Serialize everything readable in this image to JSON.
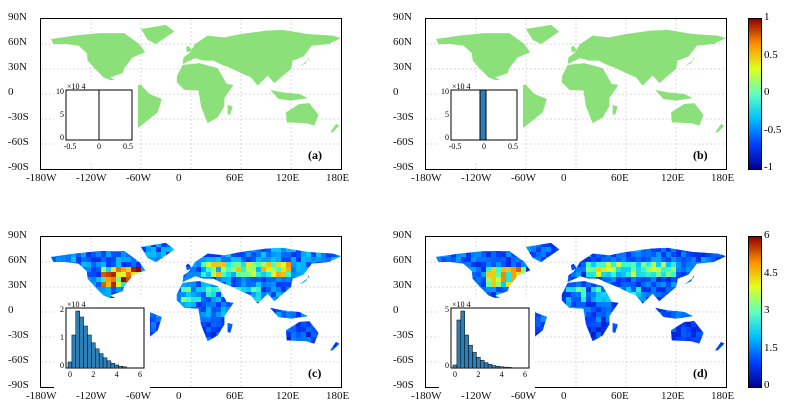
{
  "axes": {
    "lon_ticks": [
      "-180W",
      "-120W",
      "-60W",
      "0",
      "60E",
      "120E",
      "180E"
    ],
    "lat_ticks": [
      "90N",
      "60N",
      "30N",
      "0",
      "-30S",
      "-60S",
      "-90S"
    ]
  },
  "panels": [
    {
      "id": "a",
      "label": "(a)",
      "type": "zero",
      "inset_exp": "×10",
      "inset_pow": "4",
      "inset_y": [
        "10",
        "5",
        "0"
      ],
      "inset_x": [
        "-0.5",
        "0",
        "0.5"
      ]
    },
    {
      "id": "b",
      "label": "(b)",
      "type": "zero",
      "inset_exp": "×10",
      "inset_pow": "4",
      "inset_y": [
        "10",
        "5",
        "0"
      ],
      "inset_x": [
        "-0.5",
        "0",
        "0.5"
      ]
    },
    {
      "id": "c",
      "label": "(c)",
      "type": "field",
      "inset_exp": "×10",
      "inset_pow": "4",
      "inset_y": [
        "2",
        "1",
        "0"
      ],
      "inset_x": [
        "0",
        "2",
        "4",
        "6"
      ]
    },
    {
      "id": "d",
      "label": "(d)",
      "type": "field",
      "inset_exp": "×10",
      "inset_pow": "4",
      "inset_y": [
        "5",
        "0"
      ],
      "inset_x": [
        "0",
        "2",
        "4",
        "6"
      ]
    }
  ],
  "colorbars": [
    {
      "ticks": [
        "1",
        "0.5",
        "0",
        "-0.5",
        "-1"
      ]
    },
    {
      "ticks": [
        "6",
        "4.5",
        "3",
        "1.5",
        "0"
      ]
    }
  ],
  "colors": {
    "land_zero": "#8ce07a"
  }
}
